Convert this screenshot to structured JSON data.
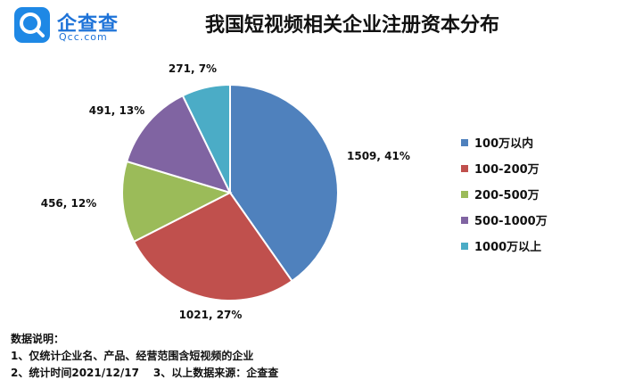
{
  "brand": {
    "name": "企查查",
    "domain": "Qcc.com",
    "accent": "#1e88e5"
  },
  "chart_data": {
    "type": "pie",
    "title": "我国短视频相关企业注册资本分布",
    "legend_position": "right",
    "slices": [
      {
        "label": "100万以内",
        "value": 1509,
        "percent": "41%",
        "color": "#4f81bd"
      },
      {
        "label": "100-200万",
        "value": 1021,
        "percent": "27%",
        "color": "#c0504d"
      },
      {
        "label": "200-500万",
        "value": 456,
        "percent": "12%",
        "color": "#9bbb59"
      },
      {
        "label": "500-1000万",
        "value": 491,
        "percent": "13%",
        "color": "#8064a2"
      },
      {
        "label": "1000万以上",
        "value": 271,
        "percent": "7%",
        "color": "#4bacc6"
      }
    ]
  },
  "notes": {
    "heading": "数据说明：",
    "line1": "1、仅统计企业名、产品、经营范围含短视频的企业",
    "line2a": "2、统计时间2021/12/17",
    "line2b": "3、以上数据来源：企查查"
  }
}
